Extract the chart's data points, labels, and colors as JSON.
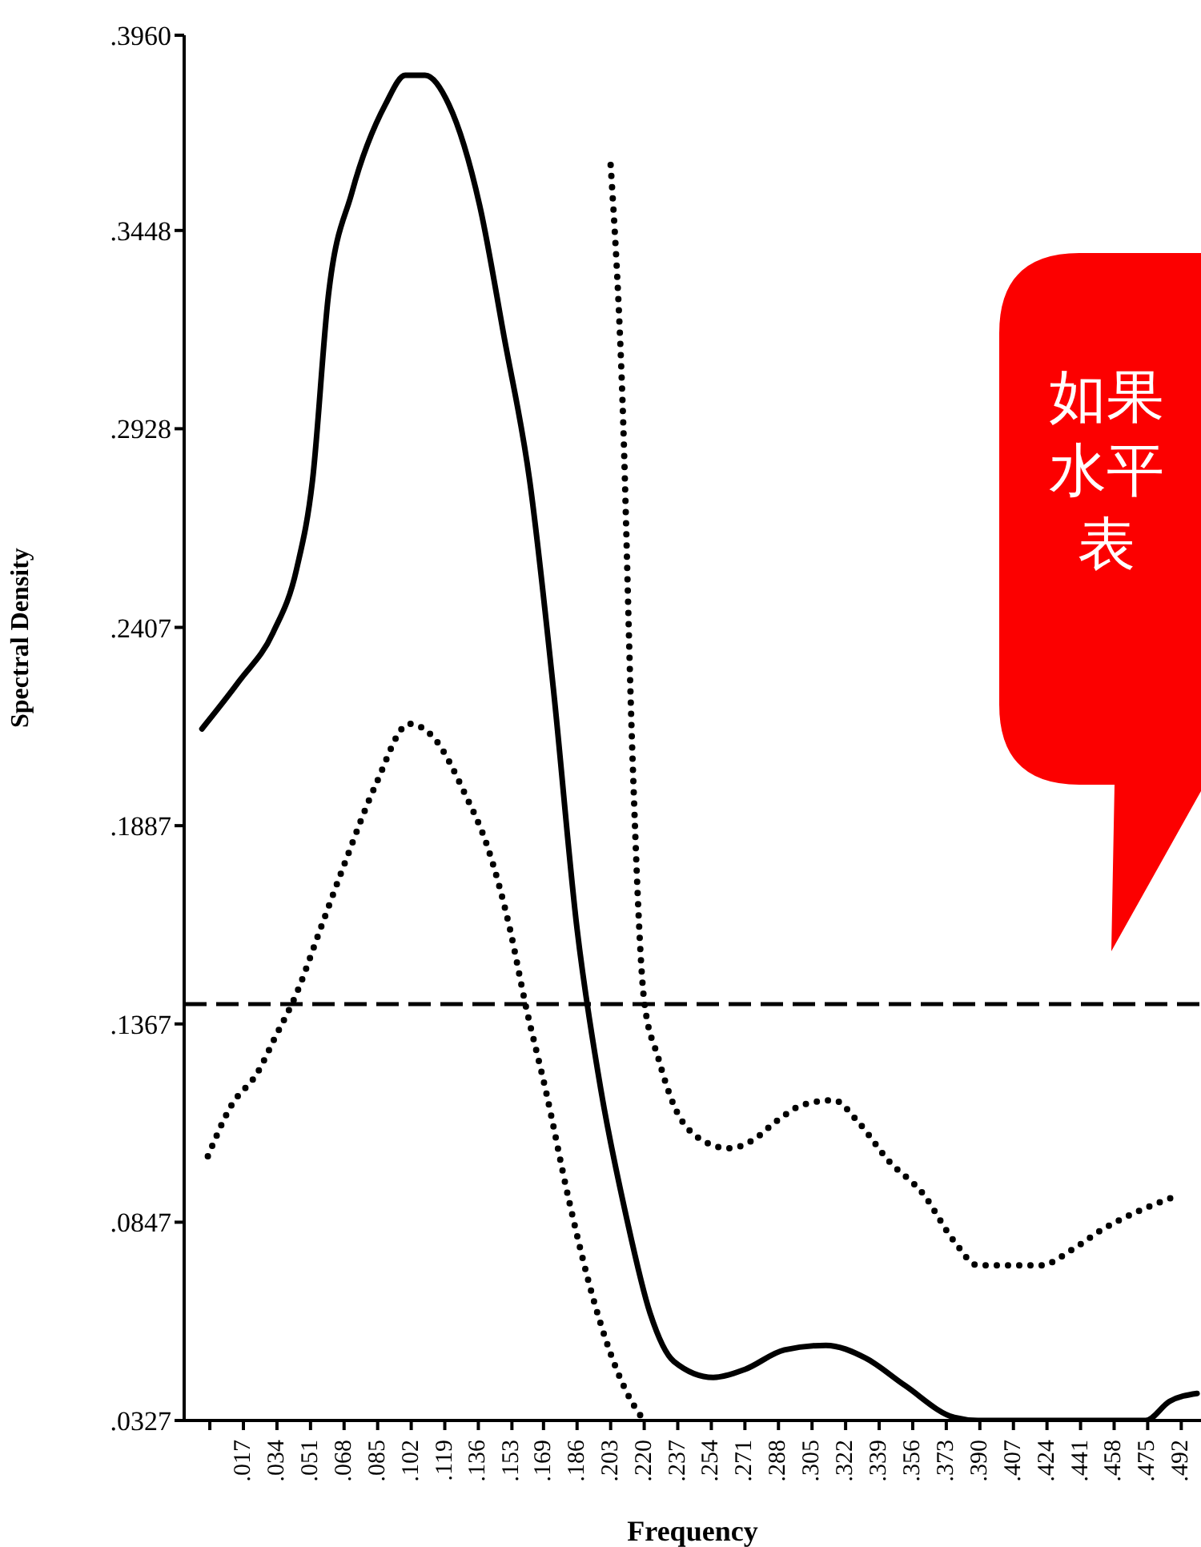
{
  "chart_data": {
    "type": "line",
    "xlabel": "Frequency",
    "ylabel": "Spectral Density",
    "xlim": [
      -0.013,
      0.502
    ],
    "ylim": [
      0.0327,
      0.396
    ],
    "xticks": [
      {
        "value": 0,
        "label": null
      },
      {
        "value": 0.017,
        "label": ".017"
      },
      {
        "value": 0.034,
        "label": ".034"
      },
      {
        "value": 0.051,
        "label": ".051"
      },
      {
        "value": 0.068,
        "label": ".068"
      },
      {
        "value": 0.085,
        "label": ".085"
      },
      {
        "value": 0.102,
        "label": ".102"
      },
      {
        "value": 0.119,
        "label": ".119"
      },
      {
        "value": 0.136,
        "label": ".136"
      },
      {
        "value": 0.153,
        "label": ".153"
      },
      {
        "value": 0.169,
        "label": ".169"
      },
      {
        "value": 0.186,
        "label": ".186"
      },
      {
        "value": 0.203,
        "label": ".203"
      },
      {
        "value": 0.22,
        "label": ".220"
      },
      {
        "value": 0.237,
        "label": ".237"
      },
      {
        "value": 0.254,
        "label": ".254"
      },
      {
        "value": 0.271,
        "label": ".271"
      },
      {
        "value": 0.288,
        "label": ".288"
      },
      {
        "value": 0.305,
        "label": ".305"
      },
      {
        "value": 0.322,
        "label": ".322"
      },
      {
        "value": 0.339,
        "label": ".339"
      },
      {
        "value": 0.356,
        "label": ".356"
      },
      {
        "value": 0.373,
        "label": ".373"
      },
      {
        "value": 0.39,
        "label": ".390"
      },
      {
        "value": 0.407,
        "label": ".407"
      },
      {
        "value": 0.424,
        "label": ".424"
      },
      {
        "value": 0.441,
        "label": ".441"
      },
      {
        "value": 0.458,
        "label": ".458"
      },
      {
        "value": 0.475,
        "label": ".475"
      },
      {
        "value": 0.492,
        "label": ".492"
      }
    ],
    "yticks": [
      {
        "value": 0.0327,
        "label": ".0327"
      },
      {
        "value": 0.0847,
        "label": ".0847"
      },
      {
        "value": 0.1367,
        "label": ".1367"
      },
      {
        "value": 0.1887,
        "label": ".1887"
      },
      {
        "value": 0.2407,
        "label": ".2407"
      },
      {
        "value": 0.2928,
        "label": ".2928"
      },
      {
        "value": 0.3448,
        "label": ".3448"
      },
      {
        "value": 0.396,
        "label": ".3960"
      }
    ],
    "marker": "none",
    "ref_lines": [
      {
        "axis": "y",
        "value": 0.1419,
        "line_style": "dashed",
        "color": "#000000"
      }
    ],
    "annotations": [
      "如果",
      "水平",
      "表"
    ],
    "series": [
      {
        "color": "#000000",
        "line_style": "solid",
        "x": [
          -0.004,
          0.015,
          0.032,
          0.044,
          0.052,
          0.06,
          0.072,
          0.089,
          0.099,
          0.109,
          0.121,
          0.137,
          0.149,
          0.162,
          0.174,
          0.186,
          0.198,
          0.211,
          0.223,
          0.235,
          0.255,
          0.271,
          0.291,
          0.312,
          0.332,
          0.352,
          0.377,
          0.389,
          0.462,
          0.474,
          0.486,
          0.5
        ],
        "values": [
          0.2141,
          0.2267,
          0.2393,
          0.2561,
          0.2792,
          0.3275,
          0.3548,
          0.3779,
          0.3855,
          0.3855,
          0.3779,
          0.3506,
          0.317,
          0.2792,
          0.2246,
          0.1616,
          0.1196,
          0.086,
          0.0608,
          0.0482,
          0.044,
          0.0461,
          0.0512,
          0.0524,
          0.0491,
          0.0419,
          0.0335,
          0.0327,
          0.0327,
          0.0327,
          0.0377,
          0.0398
        ]
      },
      {
        "color": "#000000",
        "line_style": "dotted",
        "x": [
          -0.001,
          0.011,
          0.024,
          0.033,
          0.044,
          0.056,
          0.068,
          0.084,
          0.101,
          0.113,
          0.129,
          0.141,
          0.152,
          0.16,
          0.17,
          0.182,
          0.194,
          0.206,
          0.216,
          0.22
        ],
        "values": [
          0.102,
          0.1154,
          0.1238,
          0.1331,
          0.1448,
          0.1616,
          0.1784,
          0.1994,
          0.2154,
          0.212,
          0.1973,
          0.1826,
          0.1616,
          0.1415,
          0.1196,
          0.0902,
          0.065,
          0.0461,
          0.0356,
          0.0327
        ]
      },
      {
        "color": "#000000",
        "line_style": "dotted",
        "x": [
          0.203,
          0.209,
          0.214,
          0.22,
          0.227,
          0.235,
          0.247,
          0.263,
          0.275,
          0.287,
          0.3,
          0.316,
          0.328,
          0.344,
          0.361,
          0.377,
          0.389,
          0.405,
          0.421,
          0.437,
          0.453,
          0.469,
          0.487
        ],
        "values": [
          0.362,
          0.3002,
          0.2078,
          0.1427,
          0.128,
          0.1154,
          0.107,
          0.1041,
          0.1062,
          0.1112,
          0.1154,
          0.1167,
          0.1112,
          0.1007,
          0.0923,
          0.0797,
          0.0734,
          0.0734,
          0.0734,
          0.0776,
          0.0831,
          0.0873,
          0.0911
        ]
      }
    ]
  }
}
